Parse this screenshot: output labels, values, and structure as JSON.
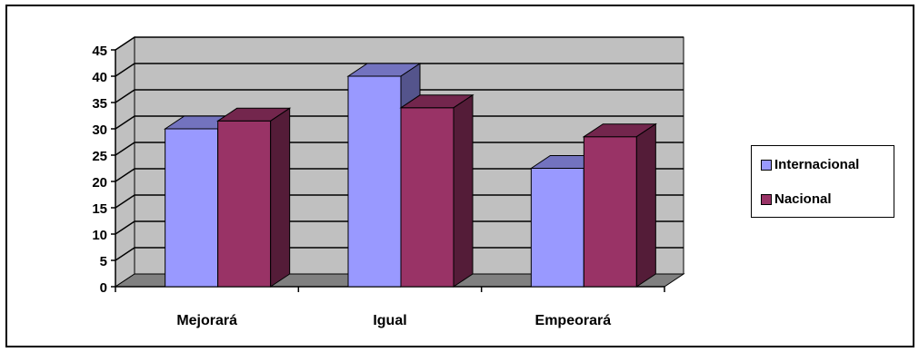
{
  "chart_data": {
    "type": "bar",
    "title": "",
    "xlabel": "",
    "ylabel": "",
    "categories": [
      "Mejorará",
      "Igual",
      "Empeorará"
    ],
    "series": [
      {
        "name": "Internacional",
        "values": [
          30,
          40,
          22.5
        ],
        "color": "#9999ff"
      },
      {
        "name": "Nacional",
        "values": [
          31.5,
          34,
          28.5
        ],
        "color": "#993366"
      }
    ],
    "ylim": [
      0,
      45
    ],
    "yticks": [
      "0",
      "5",
      "10",
      "15",
      "20",
      "25",
      "30",
      "35",
      "40",
      "45"
    ],
    "grid": true,
    "legend_position": "right",
    "style": "3d-clustered-column",
    "wall_color": "#c0c0c0",
    "floor_color": "#808080"
  }
}
